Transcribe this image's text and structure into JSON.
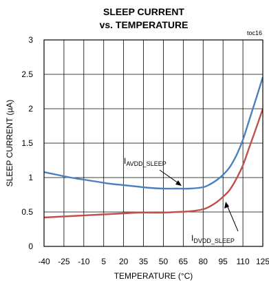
{
  "chart_data": {
    "type": "line",
    "title": "SLEEP CURRENT",
    "subtitle": "vs. TEMPERATURE",
    "tag": "toc16",
    "xlabel": "TEMPERATURE (°C)",
    "ylabel": "SLEEP CURRENT (µA)",
    "xlim": [
      -40,
      125
    ],
    "ylim": [
      0,
      3
    ],
    "x_ticks": [
      -40,
      -25,
      -10,
      5,
      20,
      35,
      50,
      65,
      80,
      95,
      110,
      125
    ],
    "y_ticks": [
      0,
      0.5,
      1,
      1.5,
      2,
      2.5,
      3
    ],
    "y_tick_labels": [
      "0",
      "0.5",
      "1",
      "1.5",
      "2",
      "2.5",
      "3"
    ],
    "grid": true,
    "series": [
      {
        "name": "AVDD_SLEEP",
        "label_main": "I",
        "label_sub": "AVDD_SLEEP",
        "color": "#4a7fc1",
        "x": [
          -40,
          -30,
          -20,
          -10,
          0,
          10,
          20,
          30,
          40,
          50,
          60,
          70,
          80,
          85,
          90,
          95,
          100,
          105,
          110,
          115,
          120,
          125
        ],
        "y": [
          1.08,
          1.04,
          1.0,
          0.97,
          0.94,
          0.91,
          0.89,
          0.87,
          0.85,
          0.84,
          0.84,
          0.84,
          0.86,
          0.9,
          0.96,
          1.04,
          1.15,
          1.32,
          1.55,
          1.85,
          2.15,
          2.46
        ]
      },
      {
        "name": "DVDD_SLEEP",
        "label_main": "I",
        "label_sub": "DVDD_SLEEP",
        "color": "#c0504d",
        "x": [
          -40,
          -30,
          -20,
          -10,
          0,
          10,
          20,
          30,
          40,
          50,
          60,
          70,
          80,
          85,
          90,
          95,
          100,
          105,
          110,
          115,
          120,
          125
        ],
        "y": [
          0.42,
          0.43,
          0.44,
          0.45,
          0.46,
          0.47,
          0.48,
          0.49,
          0.49,
          0.49,
          0.5,
          0.51,
          0.54,
          0.58,
          0.64,
          0.72,
          0.82,
          0.98,
          1.18,
          1.45,
          1.72,
          2.0
        ]
      }
    ]
  }
}
